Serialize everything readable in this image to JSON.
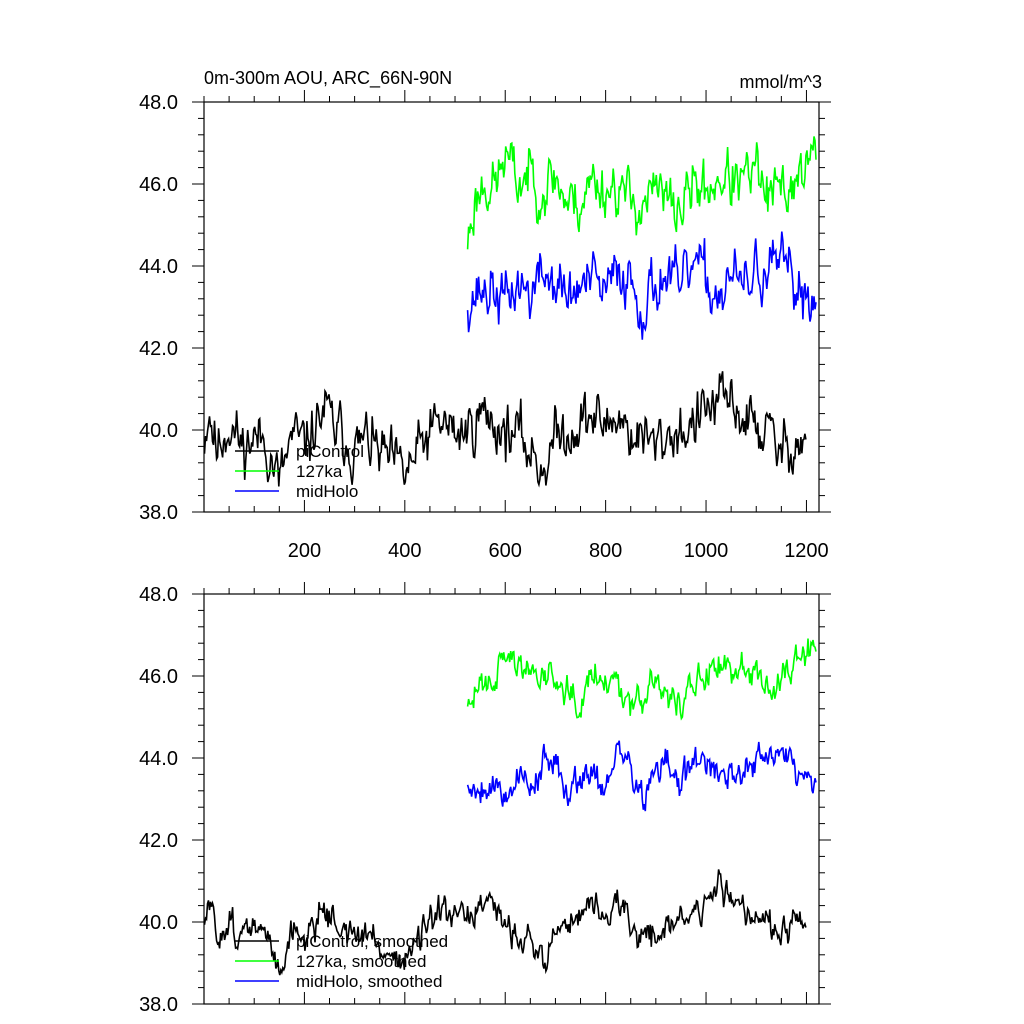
{
  "figure": {
    "title_left": "0m-300m AOU, ARC_66N-90N",
    "title_right": "mmol/m^3"
  },
  "chart_data": [
    {
      "type": "line",
      "panel": "top",
      "xlim": [
        0,
        1225
      ],
      "ylim": [
        38,
        48
      ],
      "yticks": [
        38,
        40,
        42,
        44,
        46,
        48
      ],
      "ytick_labels": [
        "38.0",
        "40.0",
        "42.0",
        "44.0",
        "46.0",
        "48.0"
      ],
      "xticks": [
        200,
        400,
        600,
        800,
        1000,
        1200
      ],
      "xtick_labels": [
        "200",
        "400",
        "600",
        "800",
        "1000",
        "1200"
      ],
      "legend_placement": "lower-left",
      "series": [
        {
          "name": "piControl",
          "color": "#000000",
          "x_start": 1,
          "x_end": 1200,
          "anchors": [
            [
              1,
              39.8
            ],
            [
              10,
              40.6
            ],
            [
              25,
              39.5
            ],
            [
              50,
              40.2
            ],
            [
              75,
              39.6
            ],
            [
              100,
              39.8
            ],
            [
              125,
              39.7
            ],
            [
              150,
              38.7
            ],
            [
              175,
              39.8
            ],
            [
              200,
              39.6
            ],
            [
              225,
              40.2
            ],
            [
              240,
              40.5
            ],
            [
              260,
              40.0
            ],
            [
              285,
              39.8
            ],
            [
              300,
              39.5
            ],
            [
              325,
              39.8
            ],
            [
              350,
              39.4
            ],
            [
              375,
              39.2
            ],
            [
              400,
              38.9
            ],
            [
              425,
              39.4
            ],
            [
              450,
              39.9
            ],
            [
              475,
              40.2
            ],
            [
              500,
              39.9
            ],
            [
              525,
              40.0
            ],
            [
              550,
              40.4
            ],
            [
              575,
              40.2
            ],
            [
              600,
              40.0
            ],
            [
              620,
              39.9
            ],
            [
              650,
              39.5
            ],
            [
              675,
              39.1
            ],
            [
              700,
              39.8
            ],
            [
              725,
              40.0
            ],
            [
              750,
              40.2
            ],
            [
              775,
              40.3
            ],
            [
              800,
              40.1
            ],
            [
              825,
              40.4
            ],
            [
              850,
              39.9
            ],
            [
              875,
              39.8
            ],
            [
              900,
              39.6
            ],
            [
              925,
              39.9
            ],
            [
              950,
              40.0
            ],
            [
              975,
              40.1
            ],
            [
              1000,
              40.5
            ],
            [
              1025,
              40.6
            ],
            [
              1050,
              40.7
            ],
            [
              1075,
              40.3
            ],
            [
              1100,
              40.1
            ],
            [
              1125,
              39.9
            ],
            [
              1150,
              39.4
            ],
            [
              1175,
              39.8
            ],
            [
              1200,
              39.7
            ]
          ],
          "noise": 0.5,
          "seed": 11
        },
        {
          "name": "127ka",
          "color": "#00ff00",
          "x_start": 525,
          "x_end": 1220,
          "anchors": [
            [
              525,
              44.6
            ],
            [
              540,
              45.6
            ],
            [
              560,
              46.1
            ],
            [
              580,
              45.9
            ],
            [
              600,
              46.7
            ],
            [
              625,
              46.0
            ],
            [
              650,
              46.3
            ],
            [
              675,
              45.9
            ],
            [
              700,
              46.2
            ],
            [
              725,
              45.5
            ],
            [
              750,
              45.6
            ],
            [
              775,
              46.1
            ],
            [
              800,
              45.9
            ],
            [
              825,
              46.0
            ],
            [
              850,
              45.5
            ],
            [
              875,
              45.6
            ],
            [
              900,
              45.8
            ],
            [
              925,
              45.5
            ],
            [
              950,
              45.4
            ],
            [
              975,
              46.0
            ],
            [
              1000,
              45.8
            ],
            [
              1025,
              46.2
            ],
            [
              1050,
              46.1
            ],
            [
              1075,
              46.0
            ],
            [
              1100,
              46.3
            ],
            [
              1125,
              45.6
            ],
            [
              1150,
              45.8
            ],
            [
              1175,
              46.1
            ],
            [
              1200,
              46.5
            ],
            [
              1220,
              46.7
            ]
          ],
          "noise": 0.5,
          "seed": 23
        },
        {
          "name": "midHolo",
          "color": "#0000ff",
          "x_start": 525,
          "x_end": 1220,
          "anchors": [
            [
              525,
              43.2
            ],
            [
              550,
              43.4
            ],
            [
              575,
              43.4
            ],
            [
              600,
              43.1
            ],
            [
              625,
              43.6
            ],
            [
              650,
              43.3
            ],
            [
              675,
              43.8
            ],
            [
              700,
              43.6
            ],
            [
              725,
              43.2
            ],
            [
              750,
              43.5
            ],
            [
              775,
              43.6
            ],
            [
              800,
              43.3
            ],
            [
              825,
              43.9
            ],
            [
              850,
              43.7
            ],
            [
              875,
              43.0
            ],
            [
              900,
              43.6
            ],
            [
              925,
              43.8
            ],
            [
              950,
              43.3
            ],
            [
              975,
              44.1
            ],
            [
              1000,
              43.6
            ],
            [
              1025,
              43.3
            ],
            [
              1050,
              43.8
            ],
            [
              1075,
              43.4
            ],
            [
              1100,
              43.9
            ],
            [
              1125,
              43.8
            ],
            [
              1150,
              44.0
            ],
            [
              1175,
              43.5
            ],
            [
              1200,
              43.4
            ],
            [
              1220,
              43.2
            ]
          ],
          "noise": 0.5,
          "seed": 37
        }
      ]
    },
    {
      "type": "line",
      "panel": "bottom",
      "xlim": [
        0,
        1225
      ],
      "ylim": [
        38,
        48
      ],
      "yticks": [
        38,
        40,
        42,
        44,
        46,
        48
      ],
      "ytick_labels": [
        "38.0",
        "40.0",
        "42.0",
        "44.0",
        "46.0",
        "48.0"
      ],
      "xticks": [
        200,
        400,
        600,
        800,
        1000,
        1200
      ],
      "legend_placement": "lower-left",
      "series": [
        {
          "name": "piControl, smoothed",
          "color": "#000000",
          "x_start": 1,
          "x_end": 1200,
          "anchors": [
            [
              1,
              39.8
            ],
            [
              10,
              40.5
            ],
            [
              25,
              39.6
            ],
            [
              50,
              40.1
            ],
            [
              75,
              39.6
            ],
            [
              100,
              39.9
            ],
            [
              125,
              39.6
            ],
            [
              150,
              38.9
            ],
            [
              175,
              39.8
            ],
            [
              200,
              39.6
            ],
            [
              225,
              40.1
            ],
            [
              240,
              40.4
            ],
            [
              260,
              40.0
            ],
            [
              285,
              39.8
            ],
            [
              300,
              39.6
            ],
            [
              325,
              39.7
            ],
            [
              350,
              39.4
            ],
            [
              375,
              39.2
            ],
            [
              400,
              39.1
            ],
            [
              425,
              39.5
            ],
            [
              450,
              39.9
            ],
            [
              475,
              40.2
            ],
            [
              500,
              40.0
            ],
            [
              525,
              40.1
            ],
            [
              550,
              40.4
            ],
            [
              575,
              40.2
            ],
            [
              600,
              40.0
            ],
            [
              620,
              39.8
            ],
            [
              650,
              39.6
            ],
            [
              675,
              38.9
            ],
            [
              700,
              39.8
            ],
            [
              725,
              40.0
            ],
            [
              750,
              40.2
            ],
            [
              775,
              40.4
            ],
            [
              800,
              40.1
            ],
            [
              825,
              40.5
            ],
            [
              850,
              39.8
            ],
            [
              875,
              39.7
            ],
            [
              900,
              39.7
            ],
            [
              925,
              39.9
            ],
            [
              950,
              40.1
            ],
            [
              975,
              40.1
            ],
            [
              1000,
              40.5
            ],
            [
              1025,
              40.8
            ],
            [
              1050,
              40.8
            ],
            [
              1075,
              40.3
            ],
            [
              1100,
              40.2
            ],
            [
              1125,
              40.1
            ],
            [
              1150,
              39.4
            ],
            [
              1175,
              40.0
            ],
            [
              1200,
              39.8
            ]
          ],
          "noise": 0.28,
          "seed": 51
        },
        {
          "name": "127ka, smoothed",
          "color": "#00ff00",
          "x_start": 525,
          "x_end": 1220,
          "anchors": [
            [
              525,
              45.0
            ],
            [
              540,
              45.6
            ],
            [
              560,
              46.1
            ],
            [
              580,
              46.0
            ],
            [
              600,
              46.7
            ],
            [
              625,
              46.1
            ],
            [
              650,
              46.2
            ],
            [
              675,
              46.0
            ],
            [
              700,
              46.1
            ],
            [
              725,
              45.7
            ],
            [
              750,
              45.6
            ],
            [
              775,
              46.1
            ],
            [
              800,
              46.0
            ],
            [
              825,
              45.8
            ],
            [
              850,
              45.5
            ],
            [
              875,
              45.6
            ],
            [
              900,
              45.8
            ],
            [
              925,
              45.5
            ],
            [
              950,
              45.3
            ],
            [
              975,
              46.0
            ],
            [
              1000,
              45.8
            ],
            [
              1025,
              46.2
            ],
            [
              1050,
              46.1
            ],
            [
              1075,
              46.1
            ],
            [
              1100,
              46.4
            ],
            [
              1125,
              45.7
            ],
            [
              1150,
              45.8
            ],
            [
              1175,
              46.3
            ],
            [
              1200,
              46.6
            ],
            [
              1220,
              46.8
            ]
          ],
          "noise": 0.3,
          "seed": 63
        },
        {
          "name": "midHolo, smoothed",
          "color": "#0000ff",
          "x_start": 525,
          "x_end": 1220,
          "anchors": [
            [
              525,
              43.3
            ],
            [
              550,
              43.3
            ],
            [
              575,
              43.4
            ],
            [
              600,
              43.1
            ],
            [
              625,
              43.6
            ],
            [
              650,
              43.3
            ],
            [
              675,
              43.9
            ],
            [
              700,
              43.7
            ],
            [
              725,
              43.3
            ],
            [
              750,
              43.6
            ],
            [
              775,
              43.7
            ],
            [
              800,
              43.3
            ],
            [
              825,
              44.1
            ],
            [
              850,
              43.8
            ],
            [
              875,
              43.0
            ],
            [
              900,
              43.6
            ],
            [
              925,
              43.9
            ],
            [
              950,
              43.2
            ],
            [
              975,
              44.1
            ],
            [
              1000,
              43.7
            ],
            [
              1025,
              43.4
            ],
            [
              1050,
              43.9
            ],
            [
              1075,
              43.5
            ],
            [
              1100,
              44.0
            ],
            [
              1125,
              43.9
            ],
            [
              1150,
              44.2
            ],
            [
              1175,
              43.8
            ],
            [
              1200,
              43.5
            ],
            [
              1220,
              43.3
            ]
          ],
          "noise": 0.3,
          "seed": 79
        }
      ]
    }
  ]
}
